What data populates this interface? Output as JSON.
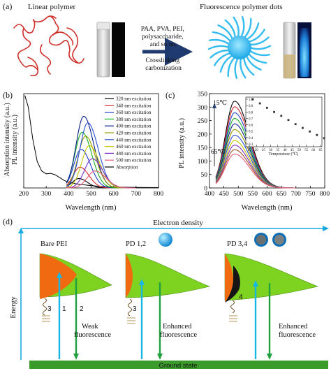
{
  "panel_a": {
    "label": "(a)",
    "left_title": "Linear polymer",
    "right_title": "Fluorescence polymer dots",
    "arrow_top_lines": [
      "PAA, PVA, PEI,",
      "polysaccharide,",
      "and so on."
    ],
    "arrow_bottom_lines": [
      "Crosslinking",
      "carbonization"
    ],
    "colors": {
      "polymer": "#d0302a",
      "dot": "#35bdf0",
      "arrow": "#1f3a6e"
    }
  },
  "panel_b": {
    "label": "(b)",
    "ylabel_lines": [
      "Absorption intensity (a.u.)",
      "PL intensity (a.u.)"
    ],
    "chart_data": {
      "type": "line",
      "xlabel": "Wavelength (nm)",
      "xlim": [
        200,
        800
      ],
      "xticks": [
        "200",
        "300",
        "400",
        "500",
        "600",
        "700",
        "800"
      ],
      "legend_position": "top-right",
      "absorption": {
        "name": "Absorption",
        "x": [
          205,
          220,
          240,
          260,
          280,
          300,
          320,
          340,
          360,
          380,
          400,
          430,
          460,
          500,
          550,
          600,
          700,
          800
        ],
        "y": [
          0.98,
          0.86,
          0.52,
          0.28,
          0.18,
          0.15,
          0.155,
          0.14,
          0.11,
          0.08,
          0.06,
          0.045,
          0.035,
          0.025,
          0.015,
          0.01,
          0.006,
          0.004
        ]
      },
      "series": [
        {
          "name": "320 nm excitation",
          "color": "#000000",
          "center": 445,
          "peak": 0.1,
          "width": 38
        },
        {
          "name": "340 nm excitation",
          "color": "#d62728",
          "center": 450,
          "peak": 0.22,
          "width": 40
        },
        {
          "name": "360 nm excitation",
          "color": "#1f3fd0",
          "center": 455,
          "peak": 0.41,
          "width": 42
        },
        {
          "name": "380 nm excitation",
          "color": "#18b01c",
          "center": 460,
          "peak": 0.59,
          "width": 43
        },
        {
          "name": "400 nm excitation",
          "color": "#0b1f8a",
          "center": 467,
          "peak": 0.76,
          "width": 45
        },
        {
          "name": "420 nm excitation",
          "color": "#9a9a00",
          "center": 475,
          "peak": 0.55,
          "width": 44
        },
        {
          "name": "440 nm excitation",
          "color": "#2a4fd6",
          "center": 485,
          "peak": 0.69,
          "width": 46
        },
        {
          "name": "460 nm excitation",
          "color": "#c5c800",
          "center": 492,
          "peak": 0.45,
          "width": 45
        },
        {
          "name": "480 nm excitation",
          "color": "#7b2fc4",
          "center": 505,
          "peak": 0.31,
          "width": 46
        },
        {
          "name": "500 nm excitation",
          "color": "#e65c7a",
          "center": 518,
          "peak": 0.18,
          "width": 47
        }
      ]
    }
  },
  "panel_c": {
    "label": "(c)",
    "top_temp": "15℃",
    "bottom_temp": "65℃",
    "chart_data": {
      "type": "line",
      "xlabel": "Wavelength (nm)",
      "ylabel": "PL intensity (a.u.)",
      "xlim": [
        400,
        800
      ],
      "ylim": [
        0,
        350
      ],
      "xticks": [
        "400",
        "450",
        "500",
        "550",
        "600",
        "650",
        "700",
        "750",
        "800"
      ],
      "yticks": [
        "0",
        "50",
        "100",
        "150",
        "200",
        "250",
        "300",
        "350"
      ],
      "peak_wavelength": 487,
      "temperatures": [
        15,
        20,
        25,
        30,
        35,
        40,
        45,
        50,
        55,
        60,
        65
      ],
      "peaks": [
        322,
        301,
        279,
        258,
        238,
        217,
        196,
        176,
        159,
        142,
        126
      ],
      "colors": [
        "#000000",
        "#d62728",
        "#1f3fd0",
        "#18b01c",
        "#0b1f8a",
        "#9a9a00",
        "#2a4fd6",
        "#c5c800",
        "#7b2fc4",
        "#a0522d",
        "#e65c7a"
      ],
      "inset": {
        "type": "scatter",
        "xlabel": "Temperature (℃)",
        "xlim": [
          15,
          65
        ],
        "ylim": [
          0.3,
          1.0
        ],
        "xticks": [
          "15",
          "20",
          "25",
          "30",
          "35",
          "40",
          "45",
          "50",
          "55",
          "60",
          "65"
        ],
        "yticks": [
          "0.3",
          "0.4",
          "0.5",
          "0.6",
          "0.7",
          "0.8",
          "0.9",
          "1.0"
        ],
        "x": [
          15,
          20,
          25,
          30,
          35,
          40,
          45,
          50,
          55,
          60,
          65
        ],
        "y": [
          1.0,
          0.935,
          0.865,
          0.8,
          0.74,
          0.675,
          0.61,
          0.55,
          0.495,
          0.44,
          0.39
        ]
      }
    }
  },
  "panel_d": {
    "label": "(d)",
    "x_axis_label": "Electron density",
    "y_axis_label": "Energy",
    "ground_state": "Ground state",
    "states": [
      {
        "title": "Bare PEI",
        "arrows": [
          "3",
          "1",
          "2"
        ],
        "note_lines": [
          "Weak",
          "fluorescence"
        ]
      },
      {
        "title": "PD 1,2",
        "arrows": [
          "3"
        ],
        "note_lines": [
          "Enhanced",
          "fluorescence"
        ]
      },
      {
        "title": "PD 3,4",
        "arrows": [
          "4"
        ],
        "note_lines": [
          "Enhanced",
          "fluorescence"
        ]
      }
    ],
    "colors": {
      "green": "#7ed321",
      "orange": "#ef6a10",
      "blue": "#19b7e6",
      "emission": "#20a040",
      "ground": "#3a9a2a"
    }
  }
}
